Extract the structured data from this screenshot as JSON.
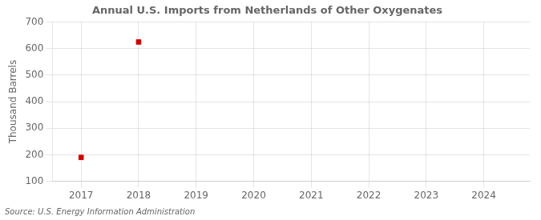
{
  "chart_data": {
    "type": "scatter",
    "title": "Annual U.S. Imports from Netherlands of Other Oxygenates",
    "ylabel": "Thousand Barrels",
    "annotations": [
      "Source: U.S. Energy Information Administration"
    ],
    "x": [
      2017,
      2018
    ],
    "values": [
      190,
      625
    ],
    "color": "#cc0000",
    "marker": "square",
    "xlim": [
      2016.5,
      2024.8
    ],
    "xticks": [
      2017,
      2018,
      2019,
      2020,
      2021,
      2022,
      2023,
      2024
    ],
    "ylim": [
      100,
      700
    ],
    "yticks": [
      100,
      200,
      300,
      400,
      500,
      600,
      700
    ],
    "grid": true
  }
}
